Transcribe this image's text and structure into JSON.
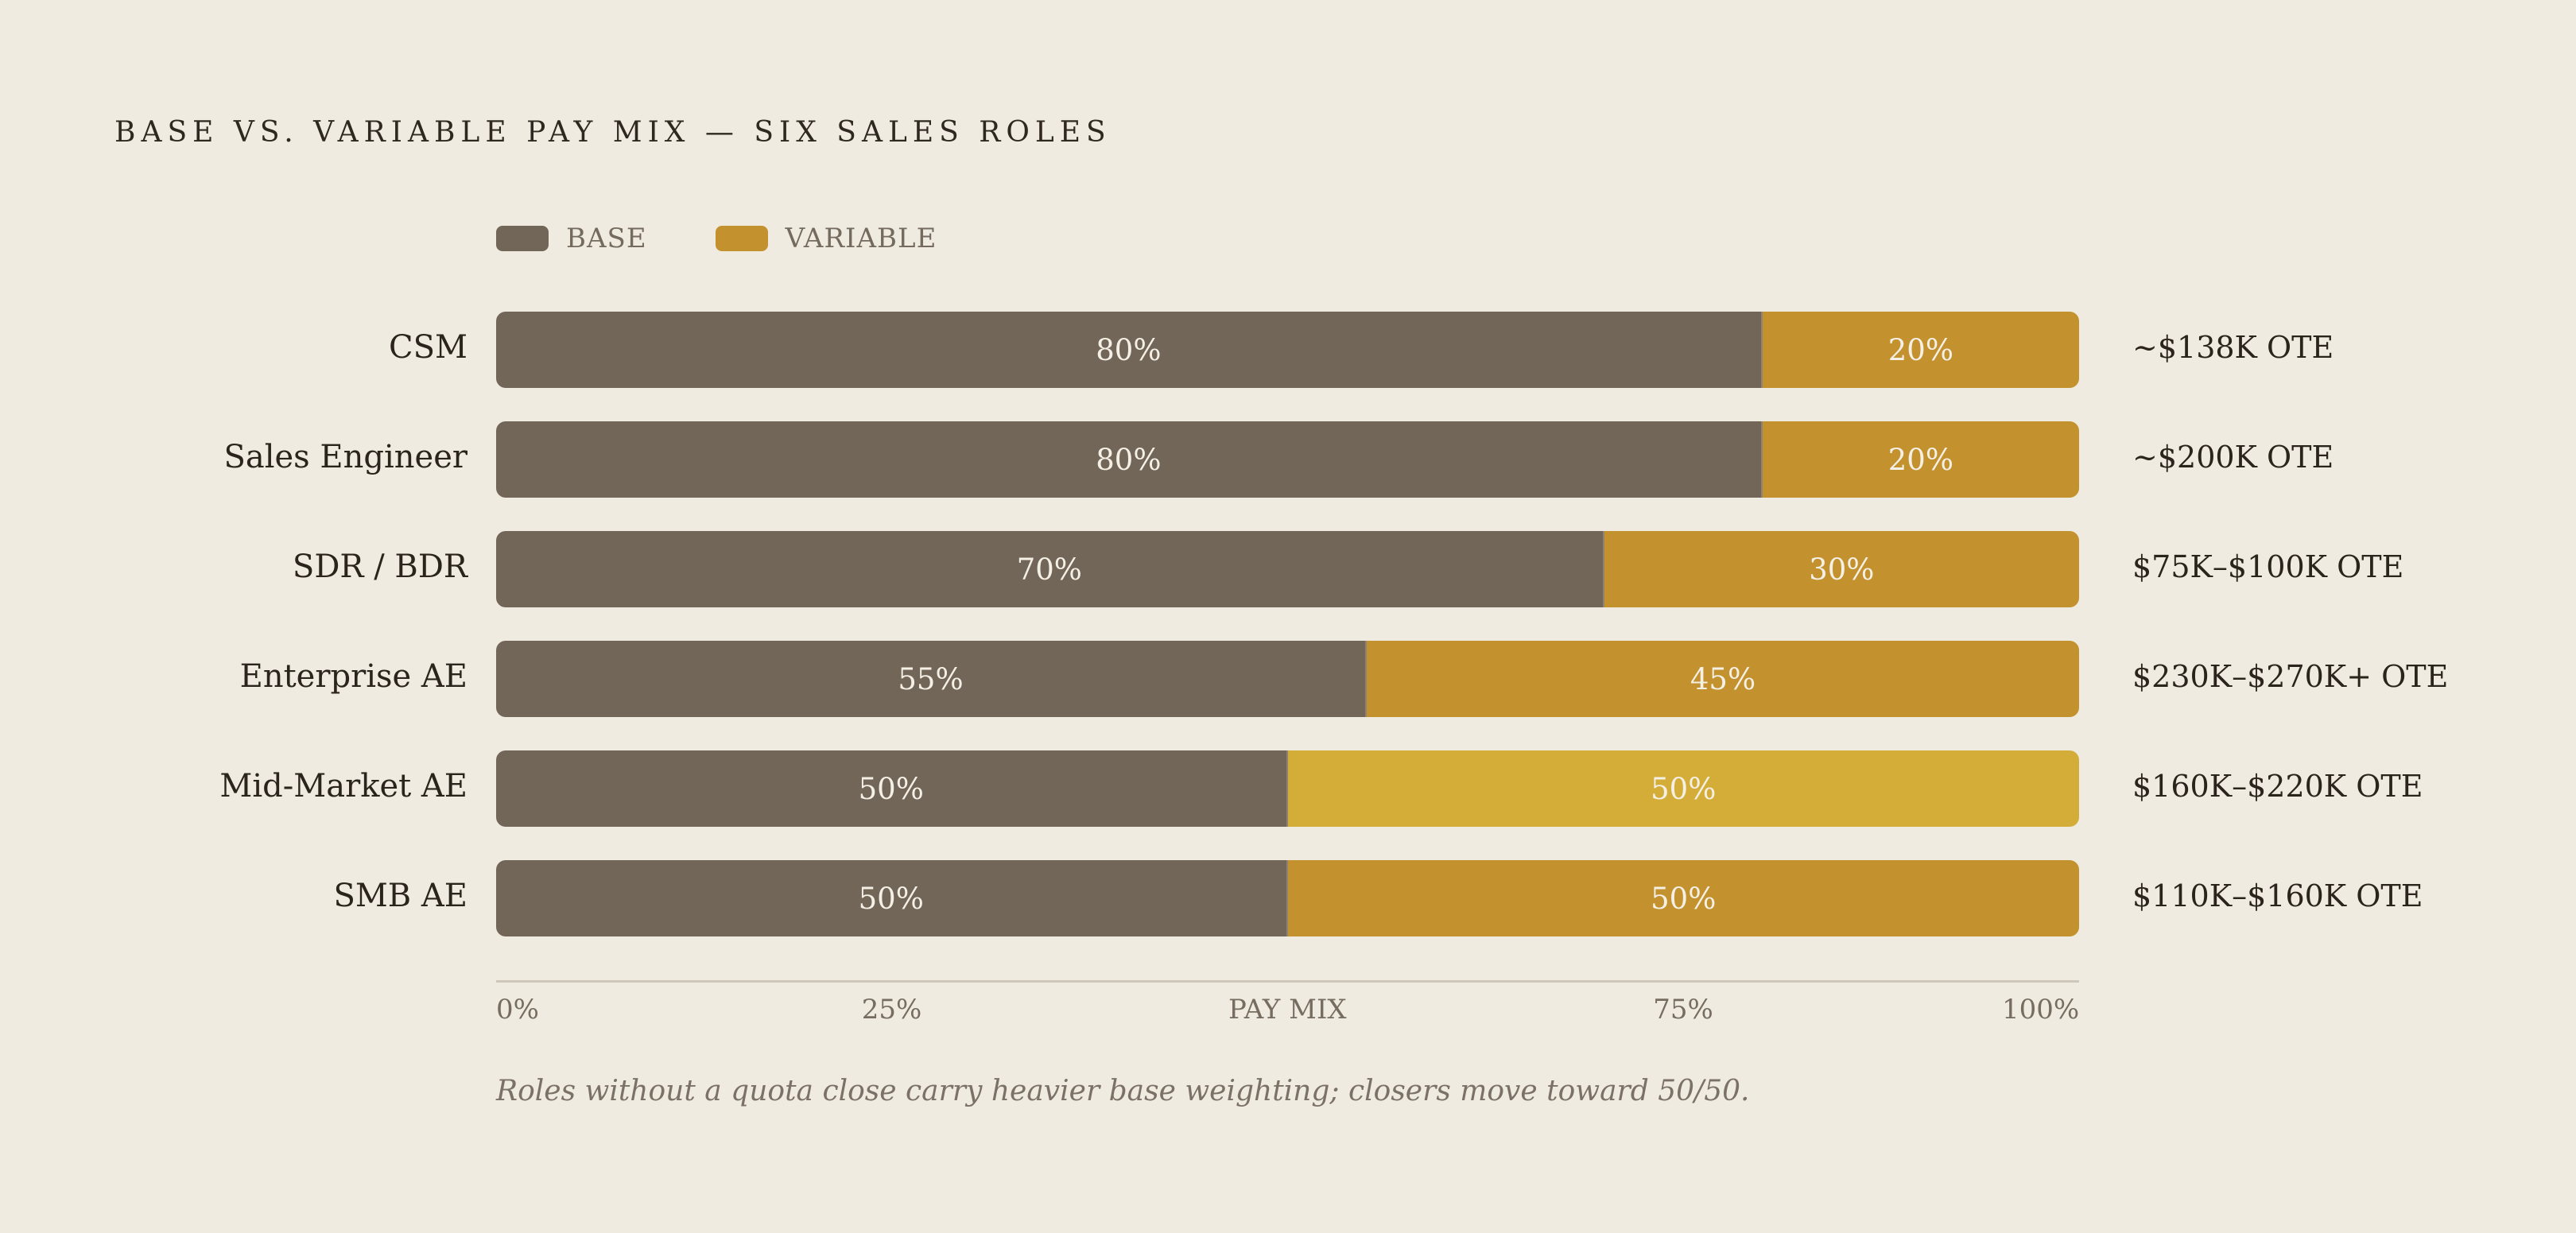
{
  "chart_data": {
    "type": "bar",
    "orientation": "horizontal",
    "stacked": true,
    "title": "BASE VS. VARIABLE PAY MIX — SIX SALES ROLES",
    "categories": [
      "CSM",
      "Sales Engineer",
      "SDR / BDR",
      "Enterprise AE",
      "Mid-Market AE",
      "SMB AE"
    ],
    "series": [
      {
        "name": "BASE",
        "values": [
          80,
          80,
          70,
          55,
          50,
          50
        ],
        "labels": [
          "80%",
          "80%",
          "70%",
          "55%",
          "50%",
          "50%"
        ]
      },
      {
        "name": "VARIABLE",
        "values": [
          20,
          20,
          30,
          45,
          50,
          50
        ],
        "labels": [
          "20%",
          "20%",
          "30%",
          "45%",
          "50%",
          "50%"
        ]
      }
    ],
    "ote_labels": [
      "~$138K OTE",
      "~$200K OTE",
      "$75K–$100K OTE",
      "$230K–$270K+ OTE",
      "$160K–$220K OTE",
      "$110K–$160K OTE"
    ],
    "xlabel": "PAY MIX",
    "xlim": [
      0,
      100
    ],
    "x_ticks": [
      "0%",
      "25%",
      "PAY MIX",
      "75%",
      "100%"
    ],
    "x_tick_values": [
      0,
      25,
      50,
      75,
      100
    ],
    "legend_position": "top-left",
    "grid": false,
    "annotation": "Roles without a quota close carry heavier base weighting; closers move toward 50/50.",
    "colors": {
      "background": "#efebe1",
      "base": "#726658",
      "variable": "#c3912d",
      "variable_highlight": "#d4ad38"
    },
    "highlighted_category": "Mid-Market AE"
  }
}
